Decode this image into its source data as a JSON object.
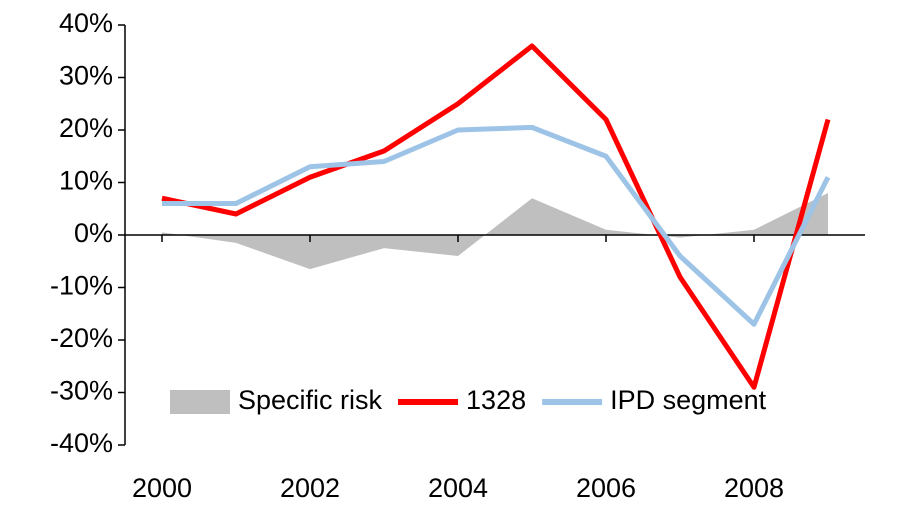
{
  "chart_data": {
    "type": "line",
    "x": [
      2000,
      2001,
      2002,
      2003,
      2004,
      2005,
      2006,
      2007,
      2008,
      2009
    ],
    "series": [
      {
        "name": "Specific risk",
        "type": "area",
        "color": "#bfbfbf",
        "values": [
          0.5,
          -1.5,
          -6.5,
          -2.5,
          -4,
          7,
          1,
          -0.5,
          1,
          8
        ]
      },
      {
        "name": "1328",
        "type": "line",
        "color": "#ff0000",
        "values": [
          7,
          4,
          11,
          16,
          25,
          36,
          22,
          -8,
          -29,
          22
        ]
      },
      {
        "name": "IPD segment",
        "type": "line",
        "color": "#9dc3e6",
        "values": [
          6,
          6,
          13,
          14,
          20,
          20.5,
          15,
          -4,
          -17,
          11
        ]
      }
    ],
    "xlim": [
      1999.5,
      2009.5
    ],
    "xticks": [
      2000,
      2002,
      2004,
      2006,
      2008
    ],
    "ylim": [
      -40,
      40
    ],
    "yticks": [
      {
        "value": 40,
        "label": "40%"
      },
      {
        "value": 30,
        "label": "30%"
      },
      {
        "value": 20,
        "label": "20%"
      },
      {
        "value": 10,
        "label": "10%"
      },
      {
        "value": 0,
        "label": "0%"
      },
      {
        "value": -10,
        "label": "-10%"
      },
      {
        "value": -20,
        "label": "-20%"
      },
      {
        "value": -30,
        "label": "-30%"
      },
      {
        "value": -40,
        "label": "-40%"
      }
    ],
    "grid": false,
    "legend": "bottom-right"
  }
}
